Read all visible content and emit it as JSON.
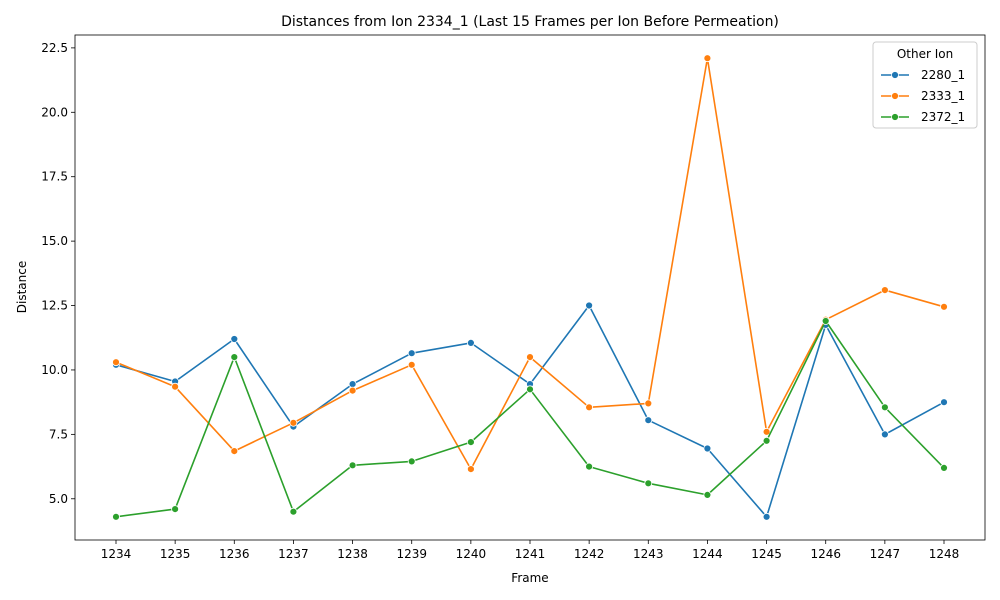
{
  "chart_data": {
    "type": "line",
    "title": "Distances from Ion 2334_1 (Last 15 Frames per Ion Before Permeation)",
    "xlabel": "Frame",
    "ylabel": "Distance",
    "categories": [
      "1234",
      "1235",
      "1236",
      "1237",
      "1238",
      "1239",
      "1240",
      "1241",
      "1242",
      "1243",
      "1244",
      "1245",
      "1246",
      "1247",
      "1248"
    ],
    "ylim": [
      3.4,
      23.0
    ],
    "yticks": [
      "5.0",
      "7.5",
      "10.0",
      "12.5",
      "15.0",
      "17.5",
      "20.0",
      "22.5"
    ],
    "grid": false,
    "legend": {
      "title": "Other Ion",
      "placement": "top-right"
    },
    "series": [
      {
        "name": "2280_1",
        "color": "#1f77b4",
        "values": [
          10.2,
          9.55,
          11.2,
          7.8,
          9.45,
          10.65,
          11.05,
          9.45,
          12.5,
          8.05,
          6.95,
          4.3,
          11.75,
          7.5,
          8.75
        ]
      },
      {
        "name": "2333_1",
        "color": "#ff7f0e",
        "values": [
          10.3,
          9.35,
          6.85,
          7.95,
          9.2,
          10.2,
          6.15,
          10.5,
          8.55,
          8.7,
          22.1,
          7.6,
          11.95,
          13.1,
          12.45
        ]
      },
      {
        "name": "2372_1",
        "color": "#2ca02c",
        "values": [
          4.3,
          4.6,
          10.5,
          4.5,
          6.3,
          6.45,
          7.2,
          9.25,
          6.25,
          5.6,
          5.15,
          7.25,
          11.9,
          8.55,
          6.2
        ]
      }
    ]
  }
}
